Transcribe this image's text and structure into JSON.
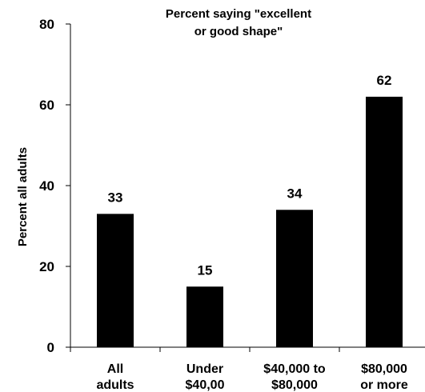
{
  "chart_data": {
    "type": "bar",
    "title_lines": [
      "Percent saying \"excellent",
      "or good shape\""
    ],
    "ylabel": "Percent all adults",
    "xlabel": "",
    "ylim": [
      0,
      80
    ],
    "yticks": [
      0,
      20,
      40,
      60,
      80
    ],
    "grid": false,
    "categories": [
      {
        "lines": [
          "All",
          "adults"
        ]
      },
      {
        "lines": [
          "Under",
          "$40,00"
        ]
      },
      {
        "lines": [
          "$40,000 to",
          "$80,000"
        ]
      },
      {
        "lines": [
          "$80,000",
          "or more"
        ]
      }
    ],
    "values": [
      33,
      15,
      34,
      62
    ],
    "data_labels": [
      "33",
      "15",
      "34",
      "62"
    ],
    "bar_color": "#000000"
  }
}
